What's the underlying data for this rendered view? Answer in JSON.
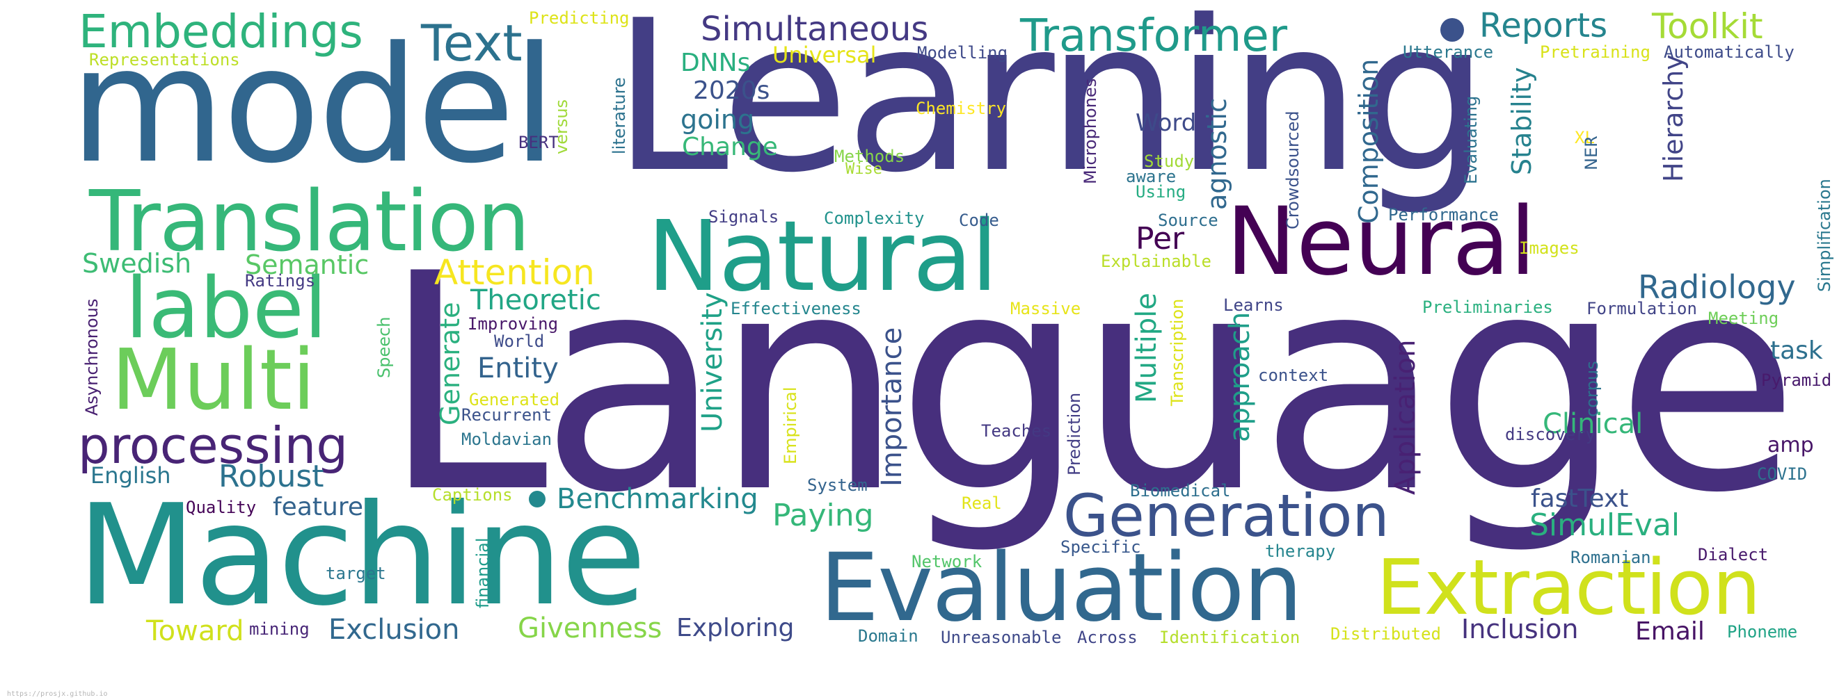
{
  "cloud": {
    "words": [
      {
        "key": "Language",
        "text": "Language",
        "color": "#472f7d"
      },
      {
        "key": "Learning",
        "text": "Learning",
        "color": "#433e85"
      },
      {
        "key": "model",
        "text": "model",
        "color": "#31668e"
      },
      {
        "key": "Machine",
        "text": "Machine",
        "color": "#21918c"
      },
      {
        "key": "Translation",
        "text": "Translation",
        "color": "#35b779"
      },
      {
        "key": "Natural",
        "text": "Natural",
        "color": "#1f9e89"
      },
      {
        "key": "Neural",
        "text": "Neural",
        "color": "#440154"
      },
      {
        "key": "Evaluation",
        "text": "Evaluation",
        "color": "#31688e"
      },
      {
        "key": "Extraction",
        "text": "Extraction",
        "color": "#d0e11c"
      },
      {
        "key": "Generation",
        "text": "Generation",
        "color": "#3b528b"
      },
      {
        "key": "label",
        "text": "label",
        "color": "#3aba76"
      },
      {
        "key": "Multi",
        "text": "Multi",
        "color": "#6ccd5a"
      },
      {
        "key": "processing",
        "text": "processing",
        "color": "#482475"
      },
      {
        "key": "Embeddings",
        "text": "Embeddings",
        "color": "#2eb37c"
      },
      {
        "key": "Text",
        "text": "Text",
        "color": "#2c728e"
      },
      {
        "key": "Transformer",
        "text": "Transformer",
        "color": "#1f9a8a"
      },
      {
        "key": "Simultaneous",
        "text": "Simultaneous",
        "color": "#443983"
      },
      {
        "key": "Reports",
        "text": "Reports",
        "color": "#25858e"
      },
      {
        "key": "Toolkit",
        "text": "Toolkit",
        "color": "#a5db36"
      },
      {
        "key": "Predicting",
        "text": "Predicting",
        "color": "#dde318"
      },
      {
        "key": "Representations",
        "text": "Representations",
        "color": "#bddf26"
      },
      {
        "key": "DNNs",
        "text": "DNNs",
        "color": "#29af7f"
      },
      {
        "key": "Universal",
        "text": "Universal",
        "color": "#e5e419"
      },
      {
        "key": "Modelling",
        "text": "Modelling",
        "color": "#3e4989"
      },
      {
        "key": "Utterance",
        "text": "Utterance",
        "color": "#2a788e"
      },
      {
        "key": "Pretraining",
        "text": "Pretraining",
        "color": "#d8e219"
      },
      {
        "key": "Automatically",
        "text": "Automatically",
        "color": "#3e4c8a"
      },
      {
        "key": "2020s",
        "text": "2020s",
        "color": "#3b528b"
      },
      {
        "key": "going",
        "text": "going",
        "color": "#2c738e"
      },
      {
        "key": "Change",
        "text": "Change",
        "color": "#37b878"
      },
      {
        "key": "Chemistry",
        "text": "Chemistry",
        "color": "#fde725"
      },
      {
        "key": "BERT",
        "text": "BERT",
        "color": "#46307e"
      },
      {
        "key": "Word",
        "text": "Word",
        "color": "#3e4a89"
      },
      {
        "key": "Methods",
        "text": "Methods",
        "color": "#86d549"
      },
      {
        "key": "Wise",
        "text": "Wise",
        "color": "#a8db34"
      },
      {
        "key": "Study",
        "text": "Study",
        "color": "#a2da37"
      },
      {
        "key": "aware",
        "text": "aware",
        "color": "#2c738e"
      },
      {
        "key": "Using",
        "text": "Using",
        "color": "#25ac82"
      },
      {
        "key": "XL",
        "text": "XL",
        "color": "#fde725"
      },
      {
        "key": "Signals",
        "text": "Signals",
        "color": "#433e85"
      },
      {
        "key": "Complexity",
        "text": "Complexity",
        "color": "#20928c"
      },
      {
        "key": "Code",
        "text": "Code",
        "color": "#365c8d"
      },
      {
        "key": "Source",
        "text": "Source",
        "color": "#2e6e8e"
      },
      {
        "key": "Performance",
        "text": "Performance",
        "color": "#31688e"
      },
      {
        "key": "Per",
        "text": "Per",
        "color": "#440154"
      },
      {
        "key": "Explainable",
        "text": "Explainable",
        "color": "#bade28"
      },
      {
        "key": "Images",
        "text": "Images",
        "color": "#d2e21b"
      },
      {
        "key": "Radiology",
        "text": "Radiology",
        "color": "#31688e"
      },
      {
        "key": "Swedish",
        "text": "Swedish",
        "color": "#3dbc74"
      },
      {
        "key": "Semantic",
        "text": "Semantic",
        "color": "#58c765"
      },
      {
        "key": "Ratings",
        "text": "Ratings",
        "color": "#443a83"
      },
      {
        "key": "Attention",
        "text": "Attention",
        "color": "#f6e620"
      },
      {
        "key": "Theoretic",
        "text": "Theoretic",
        "color": "#21a685"
      },
      {
        "key": "Improving",
        "text": "Improving",
        "color": "#481769"
      },
      {
        "key": "World",
        "text": "World",
        "color": "#3e4c8a"
      },
      {
        "key": "Effectiveness",
        "text": "Effectiveness",
        "color": "#24868e"
      },
      {
        "key": "Massive",
        "text": "Massive",
        "color": "#e7e419"
      },
      {
        "key": "Learns",
        "text": "Learns",
        "color": "#404588"
      },
      {
        "key": "Preliminaries",
        "text": "Preliminaries",
        "color": "#2ab07f"
      },
      {
        "key": "Formulation",
        "text": "Formulation",
        "color": "#414487"
      },
      {
        "key": "Meeting",
        "text": "Meeting",
        "color": "#6ece58"
      },
      {
        "key": "task",
        "text": "task",
        "color": "#2d708e"
      },
      {
        "key": "Pyramid",
        "text": "Pyramid",
        "color": "#481a6c"
      },
      {
        "key": "Entity",
        "text": "Entity",
        "color": "#33638d"
      },
      {
        "key": "Generated",
        "text": "Generated",
        "color": "#dde318"
      },
      {
        "key": "Recurrent",
        "text": "Recurrent",
        "color": "#3b528b"
      },
      {
        "key": "Moldavian",
        "text": "Moldavian",
        "color": "#2b758e"
      },
      {
        "key": "context",
        "text": "context",
        "color": "#3b528b"
      },
      {
        "key": "Clinical",
        "text": "Clinical",
        "color": "#35b779"
      },
      {
        "key": "amp",
        "text": "amp",
        "color": "#481668"
      },
      {
        "key": "discovery",
        "text": "discovery",
        "color": "#443a83"
      },
      {
        "key": "English",
        "text": "English",
        "color": "#2a768e"
      },
      {
        "key": "Robust",
        "text": "Robust",
        "color": "#2c728e"
      },
      {
        "key": "Teaches",
        "text": "Teaches",
        "color": "#443983"
      },
      {
        "key": "COVID",
        "text": "COVID",
        "color": "#2c728e"
      },
      {
        "key": "Quality",
        "text": "Quality",
        "color": "#450457"
      },
      {
        "key": "feature",
        "text": "feature",
        "color": "#33638d"
      },
      {
        "key": "Captions",
        "text": "Captions",
        "color": "#b5de2b"
      },
      {
        "key": "Benchmarking",
        "text": "Benchmarking",
        "color": "#23898e"
      },
      {
        "key": "Paying",
        "text": "Paying",
        "color": "#35b779"
      },
      {
        "key": "System",
        "text": "System",
        "color": "#33638d"
      },
      {
        "key": "Real",
        "text": "Real",
        "color": "#e2e418"
      },
      {
        "key": "Biomedical",
        "text": "Biomedical",
        "color": "#2e6f8e"
      },
      {
        "key": "fastText",
        "text": "fastText",
        "color": "#3b528b"
      },
      {
        "key": "SimulEval",
        "text": "SimulEval",
        "color": "#2ab07f"
      },
      {
        "key": "Specific",
        "text": "Specific",
        "color": "#38588c"
      },
      {
        "key": "therapy",
        "text": "therapy",
        "color": "#25858e"
      },
      {
        "key": "Network",
        "text": "Network",
        "color": "#52c569"
      },
      {
        "key": "Romanian",
        "text": "Romanian",
        "color": "#2d708e"
      },
      {
        "key": "Dialect",
        "text": "Dialect",
        "color": "#481a6c"
      },
      {
        "key": "target",
        "text": "target",
        "color": "#2a768e"
      },
      {
        "key": "Toward",
        "text": "Toward",
        "color": "#d0e11c"
      },
      {
        "key": "mining",
        "text": "mining",
        "color": "#482677"
      },
      {
        "key": "Exclusion",
        "text": "Exclusion",
        "color": "#31688e"
      },
      {
        "key": "Givenness",
        "text": "Givenness",
        "color": "#86d549"
      },
      {
        "key": "Exploring",
        "text": "Exploring",
        "color": "#3e4a89"
      },
      {
        "key": "Domain",
        "text": "Domain",
        "color": "#2a788e"
      },
      {
        "key": "Unreasonable",
        "text": "Unreasonable",
        "color": "#3e4989"
      },
      {
        "key": "Across",
        "text": "Across",
        "color": "#404588"
      },
      {
        "key": "Identification",
        "text": "Identification",
        "color": "#b5de2b"
      },
      {
        "key": "Distributed",
        "text": "Distributed",
        "color": "#d5e21a"
      },
      {
        "key": "Inclusion",
        "text": "Inclusion",
        "color": "#46327e"
      },
      {
        "key": "Email",
        "text": "Email",
        "color": "#471365"
      },
      {
        "key": "Phoneme",
        "text": "Phoneme",
        "color": "#20a386"
      },
      {
        "key": "versus",
        "text": "versus",
        "color": "#a0da39"
      },
      {
        "key": "literature",
        "text": "literature",
        "color": "#2c728e"
      },
      {
        "key": "Microphones",
        "text": "Microphones",
        "color": "#482878"
      },
      {
        "key": "Crowdsourced",
        "text": "Crowdsourced",
        "color": "#3b528b"
      },
      {
        "key": "Composition",
        "text": "Composition",
        "color": "#31688e"
      },
      {
        "key": "agnostic",
        "text": "agnostic",
        "color": "#31688e"
      },
      {
        "key": "Stability",
        "text": "Stability",
        "color": "#26828e"
      },
      {
        "key": "Hierarchy",
        "text": "Hierarchy",
        "color": "#414487"
      },
      {
        "key": "Evaluating",
        "text": "Evaluating",
        "color": "#2c728e"
      },
      {
        "key": "NER",
        "text": "NER",
        "color": "#33638d"
      },
      {
        "key": "Simplification",
        "text": "Simplification",
        "color": "#2a788e"
      },
      {
        "key": "Asynchronous",
        "text": "Asynchronous",
        "color": "#482071"
      },
      {
        "key": "Speech",
        "text": "Speech",
        "color": "#4ac16d"
      },
      {
        "key": "Generate",
        "text": "Generate",
        "color": "#2ab07f"
      },
      {
        "key": "University",
        "text": "University",
        "color": "#1fa187"
      },
      {
        "key": "Importance",
        "text": "Importance",
        "color": "#3b528b"
      },
      {
        "key": "Empirical",
        "text": "Empirical",
        "color": "#d8e219"
      },
      {
        "key": "Transcription",
        "text": "Transcription",
        "color": "#dde318"
      },
      {
        "key": "Multiple",
        "text": "Multiple",
        "color": "#22a884"
      },
      {
        "key": "approach",
        "text": "approach",
        "color": "#1f9e89"
      },
      {
        "key": "Prediction",
        "text": "Prediction",
        "color": "#433e85"
      },
      {
        "key": "Application",
        "text": "Application",
        "color": "#482173"
      },
      {
        "key": "corpus",
        "text": "corpus",
        "color": "#2c738e"
      },
      {
        "key": "financial",
        "text": "financial",
        "color": "#1e9b8a"
      }
    ],
    "dots": [
      {
        "key": "dot1",
        "color": "#3b528b"
      },
      {
        "key": "dot2",
        "color": "#23898e"
      }
    ],
    "footer": "https://prosjx.github.io"
  }
}
